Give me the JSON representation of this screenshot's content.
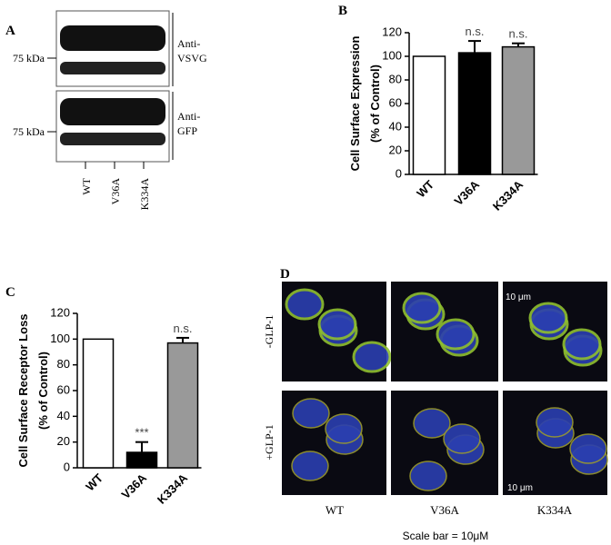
{
  "chart_data": [
    {
      "type": "bar",
      "panel": "B",
      "ylabel": [
        "Cell  Surface Expression",
        "(% of Control)"
      ],
      "categories": [
        "WT",
        "V36A",
        "K334A"
      ],
      "values": [
        100,
        103,
        108
      ],
      "errors": [
        null,
        10,
        3
      ],
      "colors": [
        "#ffffff",
        "#000000",
        "#999999"
      ],
      "annotations": [
        null,
        "n.s.",
        "n.s."
      ],
      "ylim": [
        0,
        120
      ],
      "yticks": [
        0,
        20,
        40,
        60,
        80,
        100,
        120
      ]
    },
    {
      "type": "bar",
      "panel": "C",
      "ylabel": [
        "Cell  Surface Receptor Loss",
        "(% of Control)"
      ],
      "categories": [
        "WT",
        "V36A",
        "K334A"
      ],
      "values": [
        100,
        12,
        97
      ],
      "errors": [
        null,
        8,
        4
      ],
      "colors": [
        "#ffffff",
        "#000000",
        "#999999"
      ],
      "annotations": [
        null,
        "***",
        "n.s."
      ],
      "ylim": [
        0,
        120
      ],
      "yticks": [
        0,
        20,
        40,
        60,
        80,
        100,
        120
      ]
    }
  ],
  "blot": {
    "panel": "A",
    "markers": [
      "75 kDa",
      "75 kDa"
    ],
    "antibodies": [
      [
        "Anti-",
        "VSVG"
      ],
      [
        "Anti-",
        "GFP"
      ]
    ],
    "lanes": [
      "WT",
      "V36A",
      "K334A"
    ]
  },
  "microscopy": {
    "panel": "D",
    "rows": [
      "-GLP-1",
      "+GLP-1"
    ],
    "columns": [
      "WT",
      "V36A",
      "K334A"
    ],
    "scale_texts": [
      "10 μm",
      "10 μm"
    ],
    "caption": "Scale bar = 10μM"
  }
}
